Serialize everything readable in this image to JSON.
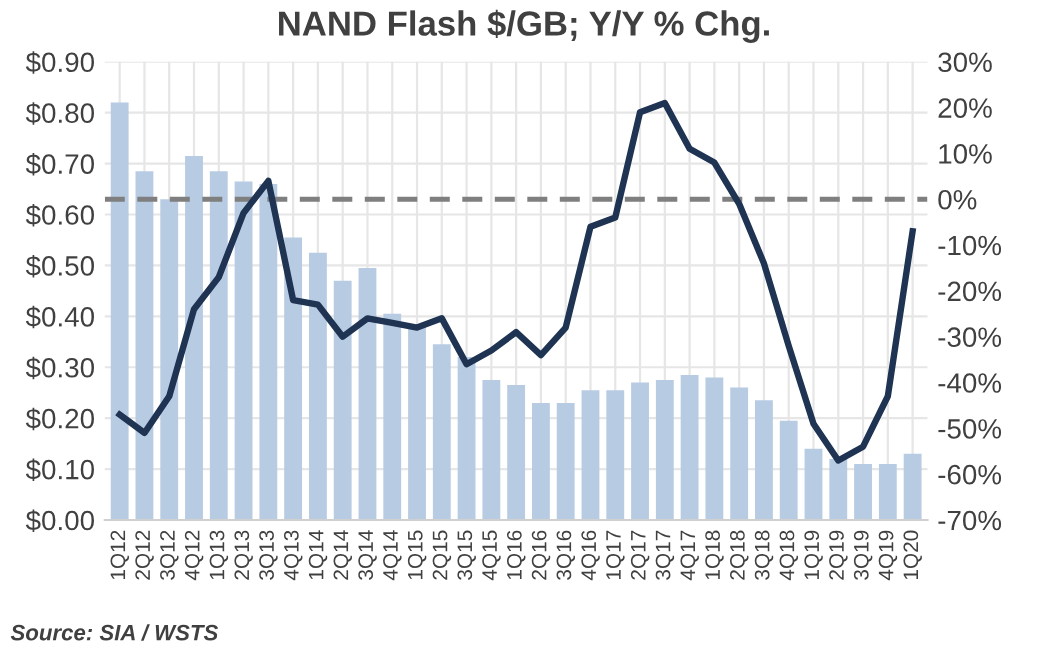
{
  "chart_data": {
    "type": "bar",
    "title": "NAND Flash $/GB; Y/Y % Chg.",
    "categories": [
      "1Q12",
      "2Q12",
      "3Q12",
      "4Q12",
      "1Q13",
      "2Q13",
      "3Q13",
      "4Q13",
      "1Q14",
      "2Q14",
      "3Q14",
      "4Q14",
      "1Q15",
      "2Q15",
      "3Q15",
      "4Q15",
      "1Q16",
      "2Q16",
      "3Q16",
      "4Q16",
      "1Q17",
      "2Q17",
      "3Q17",
      "4Q17",
      "1Q18",
      "2Q18",
      "3Q18",
      "4Q18",
      "1Q19",
      "2Q19",
      "3Q19",
      "4Q19",
      "1Q20"
    ],
    "series": [
      {
        "color": "#b7cbe3",
        "values": [
          0.82,
          0.685,
          0.63,
          0.715,
          0.685,
          0.665,
          0.66,
          0.555,
          0.525,
          0.47,
          0.495,
          0.405,
          0.38,
          0.345,
          0.32,
          0.275,
          0.265,
          0.23,
          0.23,
          0.255,
          0.255,
          0.27,
          0.275,
          0.285,
          0.28,
          0.26,
          0.235,
          0.195,
          0.14,
          0.12,
          0.11,
          0.11,
          0.13
        ]
      },
      {
        "type": "line",
        "axis": "y2",
        "color": "#1f3353",
        "values": [
          -47,
          -51,
          -43,
          -24,
          -17,
          -3,
          4,
          -22,
          -23,
          -30,
          -26,
          -27,
          -28,
          -26,
          -36,
          -33,
          -29,
          -34,
          -28,
          -6,
          -4,
          19,
          21,
          11,
          8,
          -1,
          -14,
          -32,
          -49,
          -57,
          -54,
          -43,
          -7
        ]
      }
    ],
    "ylim": [
      0,
      0.9
    ],
    "yticks": [
      {
        "value": 0,
        "label": "$0.00"
      },
      {
        "value": 0.1,
        "label": "$0.10"
      },
      {
        "value": 0.2,
        "label": "$0.20"
      },
      {
        "value": 0.3,
        "label": "$0.30"
      },
      {
        "value": 0.4,
        "label": "$0.40"
      },
      {
        "value": 0.5,
        "label": "$0.50"
      },
      {
        "value": 0.6,
        "label": "$0.60"
      },
      {
        "value": 0.7,
        "label": "$0.70"
      },
      {
        "value": 0.8,
        "label": "$0.80"
      },
      {
        "value": 0.9,
        "label": "$0.90"
      }
    ],
    "y2lim": [
      -70,
      30
    ],
    "y2ticks": [
      {
        "value": -70,
        "label": "-70%"
      },
      {
        "value": -60,
        "label": "-60%"
      },
      {
        "value": -50,
        "label": "-50%"
      },
      {
        "value": -40,
        "label": "-40%"
      },
      {
        "value": -30,
        "label": "-30%"
      },
      {
        "value": -20,
        "label": "-20%"
      },
      {
        "value": -10,
        "label": "-10%"
      },
      {
        "value": 0,
        "label": "0%"
      },
      {
        "value": 10,
        "label": "10%"
      },
      {
        "value": 20,
        "label": "20%"
      },
      {
        "value": 30,
        "label": "30%"
      }
    ],
    "ref_lines": [
      {
        "axis": "y2",
        "value": 0,
        "color": "#7f7f7f",
        "line_style": "dashed"
      }
    ],
    "grid": true,
    "legend": false,
    "annotations": [
      "Source: SIA / WSTS"
    ]
  }
}
